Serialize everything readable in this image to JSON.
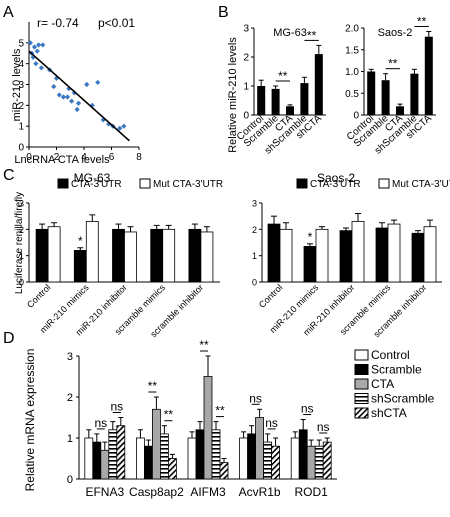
{
  "chart_data": [
    {
      "panel": "A",
      "type": "scatter",
      "annotation_r": "r= -0.74",
      "annotation_p": "p<0.01",
      "xlabel": "LncRNA CTA levels",
      "ylabel": "miR-210 levels",
      "xlim": [
        0,
        8
      ],
      "ylim": [
        0,
        6
      ],
      "xticks": [
        "0",
        "2",
        "4",
        "6",
        "8"
      ],
      "yticks": [
        "0",
        "1",
        "2",
        "3",
        "4",
        "5"
      ],
      "point_color": "#3a78c3",
      "points": [
        [
          0.1,
          5.0
        ],
        [
          0.4,
          4.8
        ],
        [
          0.6,
          4.6
        ],
        [
          0.7,
          4.9
        ],
        [
          0.3,
          4.3
        ],
        [
          0.5,
          4.0
        ],
        [
          0.9,
          3.8
        ],
        [
          0.2,
          4.5
        ],
        [
          1.0,
          4.9
        ],
        [
          1.5,
          3.7
        ],
        [
          1.8,
          2.9
        ],
        [
          2.0,
          3.3
        ],
        [
          2.2,
          2.5
        ],
        [
          2.5,
          2.4
        ],
        [
          2.8,
          2.4
        ],
        [
          2.9,
          2.8
        ],
        [
          3.1,
          2.2
        ],
        [
          3.3,
          2.6
        ],
        [
          3.5,
          1.8
        ],
        [
          3.6,
          2.1
        ],
        [
          4.2,
          3.0
        ],
        [
          4.6,
          2.0
        ],
        [
          5.0,
          3.1
        ],
        [
          5.4,
          1.3
        ],
        [
          5.8,
          1.1
        ],
        [
          6.1,
          1.0
        ],
        [
          6.6,
          0.9
        ],
        [
          6.9,
          1.0
        ]
      ],
      "fit": [
        [
          0,
          4.6
        ],
        [
          7.3,
          0.3
        ]
      ]
    },
    {
      "panel": "B",
      "type": "bar",
      "ylabel": "Relative miR-210 levels",
      "categories": [
        "Control",
        "Scramble",
        "CTA",
        "shScramble",
        "shCTA"
      ],
      "ylim": [
        0,
        3
      ],
      "subplots": [
        {
          "title": "MG-63",
          "yticks": [
            "0",
            "1",
            "2",
            "3"
          ],
          "values": [
            1.0,
            0.9,
            0.3,
            1.1,
            2.1
          ],
          "errors": [
            0.2,
            0.1,
            0.05,
            0.2,
            0.3
          ],
          "sig": [
            {
              "from": 1,
              "to": 2,
              "label": "**"
            },
            {
              "from": 3,
              "to": 4,
              "label": "**"
            }
          ]
        },
        {
          "title": "Saos-2",
          "yticks": [
            "0",
            "0.5",
            "1.0",
            "1.5",
            "2.0"
          ],
          "ylim": [
            0,
            2.0
          ],
          "values": [
            1.0,
            0.8,
            0.2,
            0.95,
            1.8
          ],
          "errors": [
            0.05,
            0.15,
            0.05,
            0.1,
            0.12
          ],
          "sig": [
            {
              "from": 1,
              "to": 2,
              "label": "**"
            },
            {
              "from": 3,
              "to": 4,
              "label": "**"
            }
          ]
        }
      ]
    },
    {
      "panel": "C",
      "type": "bar",
      "ylabel": "Luciferase renilla/firefly",
      "categories": [
        "Control",
        "miR-210 mimics",
        "miR-210 inhibitor",
        "scramble mimics",
        "scramble inhibitor"
      ],
      "ylim": [
        0,
        3
      ],
      "yticks": [
        "0",
        "1",
        "2",
        "3"
      ],
      "legend": [
        "CTA-3'UTR",
        "Mut CTA-3'UTR"
      ],
      "subplots": [
        {
          "title": "MG-63",
          "series": [
            {
              "name": "CTA-3'UTR",
              "values": [
                2.0,
                1.2,
                2.0,
                2.0,
                2.0
              ],
              "errors": [
                0.2,
                0.1,
                0.2,
                0.15,
                0.2
              ]
            },
            {
              "name": "Mut CTA-3'UTR",
              "values": [
                2.1,
                2.3,
                1.9,
                2.0,
                1.9
              ],
              "errors": [
                0.15,
                0.25,
                0.2,
                0.15,
                0.2
              ]
            }
          ],
          "sig": [
            {
              "group": 1,
              "label": "*"
            }
          ]
        },
        {
          "title": "Saos-2",
          "series": [
            {
              "name": "CTA-3'UTR",
              "values": [
                2.2,
                1.35,
                1.95,
                2.05,
                1.85
              ],
              "errors": [
                0.3,
                0.1,
                0.1,
                0.2,
                0.1
              ]
            },
            {
              "name": "Mut CTA-3'UTR",
              "values": [
                2.0,
                2.0,
                2.3,
                2.2,
                2.1
              ],
              "errors": [
                0.25,
                0.1,
                0.3,
                0.15,
                0.25
              ]
            }
          ],
          "sig": [
            {
              "group": 1,
              "label": "*"
            }
          ]
        }
      ]
    },
    {
      "panel": "D",
      "type": "bar",
      "ylabel": "Relative mRNA expression",
      "categories": [
        "EFNA3",
        "Casp8ap2",
        "AIFM3",
        "AcvR1b",
        "ROD1"
      ],
      "ylim": [
        0,
        3
      ],
      "yticks": [
        "0",
        "1",
        "2",
        "3"
      ],
      "series": [
        {
          "name": "Control",
          "values": [
            1.0,
            1.0,
            1.0,
            1.0,
            1.0
          ],
          "errors": [
            0.2,
            0.2,
            0.15,
            0.15,
            0.15
          ]
        },
        {
          "name": "Scramble",
          "values": [
            0.9,
            0.8,
            1.2,
            1.1,
            1.2
          ],
          "errors": [
            0.2,
            0.15,
            0.2,
            0.2,
            0.25
          ]
        },
        {
          "name": "CTA",
          "values": [
            0.7,
            1.7,
            2.5,
            1.5,
            0.8
          ],
          "errors": [
            0.2,
            0.3,
            0.5,
            0.2,
            0.15
          ]
        },
        {
          "name": "shScramble",
          "values": [
            1.2,
            1.1,
            1.2,
            0.9,
            0.8
          ],
          "errors": [
            0.2,
            0.2,
            0.2,
            0.2,
            0.15
          ]
        },
        {
          "name": "shCTA",
          "values": [
            1.3,
            0.5,
            0.4,
            0.8,
            0.9
          ],
          "errors": [
            0.2,
            0.1,
            0.1,
            0.2,
            0.1
          ]
        }
      ],
      "sig": [
        {
          "group": 0,
          "from": 1,
          "to": 2,
          "label": "ns"
        },
        {
          "group": 0,
          "from": 3,
          "to": 4,
          "label": "ns"
        },
        {
          "group": 1,
          "from": 1,
          "to": 2,
          "label": "**"
        },
        {
          "group": 1,
          "from": 3,
          "to": 4,
          "label": "**"
        },
        {
          "group": 2,
          "from": 1,
          "to": 2,
          "label": "**"
        },
        {
          "group": 2,
          "from": 3,
          "to": 4,
          "label": "**"
        },
        {
          "group": 3,
          "from": 1,
          "to": 2,
          "label": "ns"
        },
        {
          "group": 3,
          "from": 3,
          "to": 4,
          "label": "ns"
        },
        {
          "group": 4,
          "from": 1,
          "to": 2,
          "label": "ns"
        },
        {
          "group": 4,
          "from": 3,
          "to": 4,
          "label": "ns"
        }
      ]
    }
  ]
}
